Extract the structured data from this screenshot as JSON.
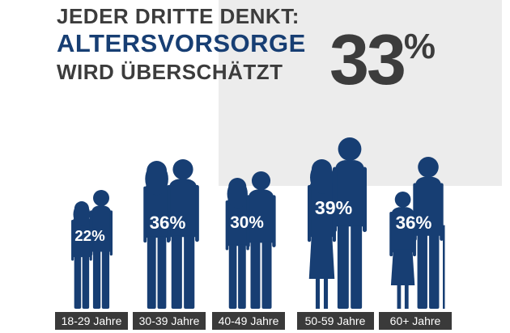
{
  "headline": {
    "line1": "JEDER DRITTE DENKT:",
    "line2": "ALTERSVORSORGE",
    "line3": "WIRD ÜBERSCHÄTZT"
  },
  "overall": {
    "value": "33",
    "symbol": "%",
    "fraction": 0.33
  },
  "colors": {
    "figure": "#173e73",
    "headline_dark": "#3c3c3c",
    "headline_blue": "#173e73",
    "label_bg": "#3a3a3a",
    "pie": "#ececec"
  },
  "chart_data": {
    "type": "bar",
    "title": "JEDER DRITTE DENKT: ALTERSVORSORGE WIRD ÜBERSCHÄTZT",
    "categories": [
      "18-29 Jahre",
      "30-39 Jahre",
      "40-49 Jahre",
      "50-59 Jahre",
      "60+ Jahre"
    ],
    "values": [
      22,
      36,
      30,
      39,
      36
    ],
    "value_labels": [
      "22%",
      "36%",
      "30%",
      "39%",
      "36%"
    ],
    "icon_names": [
      "couple-young-icon",
      "couple-30s-icon",
      "couple-40s-icon",
      "couple-50s-icon",
      "couple-senior-cane-icon"
    ],
    "ylabel": "",
    "xlabel": "",
    "ylim": [
      0,
      40
    ]
  }
}
